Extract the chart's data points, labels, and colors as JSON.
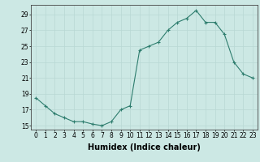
{
  "x": [
    0,
    1,
    2,
    3,
    4,
    5,
    6,
    7,
    8,
    9,
    10,
    11,
    12,
    13,
    14,
    15,
    16,
    17,
    18,
    19,
    20,
    21,
    22,
    23
  ],
  "y": [
    18.5,
    17.5,
    16.5,
    16.0,
    15.5,
    15.5,
    15.2,
    15.0,
    15.5,
    17.0,
    17.5,
    24.5,
    25.0,
    25.5,
    27.0,
    28.0,
    28.5,
    29.5,
    28.0,
    28.0,
    26.5,
    23.0,
    21.5,
    21.0
  ],
  "xlabel": "Humidex (Indice chaleur)",
  "xlim": [
    -0.5,
    23.5
  ],
  "ylim": [
    14.5,
    30.2
  ],
  "yticks": [
    15,
    17,
    19,
    21,
    23,
    25,
    27,
    29
  ],
  "xticks": [
    0,
    1,
    2,
    3,
    4,
    5,
    6,
    7,
    8,
    9,
    10,
    11,
    12,
    13,
    14,
    15,
    16,
    17,
    18,
    19,
    20,
    21,
    22,
    23
  ],
  "line_color": "#2e7d6e",
  "marker_color": "#2e7d6e",
  "bg_color": "#cce8e4",
  "grid_color": "#b8d8d4",
  "tick_fontsize": 5.5,
  "label_fontsize": 7.0
}
